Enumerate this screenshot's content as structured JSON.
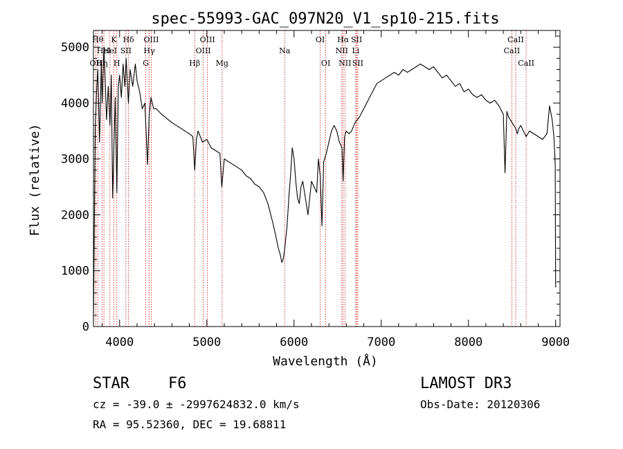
{
  "chart_data": {
    "type": "line",
    "title": "spec-55993-GAC_097N20_V1_sp10-215.fits",
    "xlabel": "Wavelength (Å)",
    "ylabel": "Flux (relative)",
    "xlim": [
      3700,
      9050
    ],
    "ylim": [
      0,
      5300
    ],
    "xticks": [
      4000,
      5000,
      6000,
      7000,
      8000,
      9000
    ],
    "yticks": [
      0,
      1000,
      2000,
      3000,
      4000,
      5000
    ],
    "grid": false,
    "line_color": "#000000",
    "marker_color": "#cc0000",
    "series": [
      {
        "x": [
          3700,
          3720,
          3735,
          3750,
          3770,
          3790,
          3800,
          3820,
          3835,
          3850,
          3870,
          3890,
          3905,
          3920,
          3934,
          3950,
          3968,
          3985,
          4000,
          4020,
          4040,
          4060,
          4075,
          4101,
          4120,
          4150,
          4180,
          4200,
          4230,
          4260,
          4290,
          4320,
          4340,
          4360,
          4390,
          4420,
          4450,
          4480,
          4520,
          4560,
          4600,
          4650,
          4700,
          4750,
          4800,
          4840,
          4861,
          4880,
          4900,
          4950,
          5000,
          5050,
          5100,
          5150,
          5172,
          5200,
          5250,
          5300,
          5350,
          5400,
          5450,
          5500,
          5550,
          5600,
          5650,
          5700,
          5750,
          5780,
          5800,
          5820,
          5840,
          5860,
          5875,
          5890,
          5900,
          5920,
          5940,
          5960,
          5980,
          6000,
          6020,
          6040,
          6060,
          6080,
          6100,
          6120,
          6140,
          6160,
          6180,
          6200,
          6230,
          6260,
          6280,
          6300,
          6320,
          6340,
          6370,
          6400,
          6430,
          6460,
          6490,
          6520,
          6550,
          6563,
          6580,
          6600,
          6630,
          6660,
          6700,
          6750,
          6800,
          6850,
          6900,
          6950,
          7000,
          7050,
          7100,
          7150,
          7200,
          7250,
          7300,
          7350,
          7400,
          7450,
          7500,
          7550,
          7600,
          7650,
          7700,
          7750,
          7800,
          7850,
          7900,
          7950,
          8000,
          8050,
          8100,
          8150,
          8200,
          8250,
          8300,
          8350,
          8400,
          8420,
          8440,
          8460,
          8480,
          8500,
          8520,
          8542,
          8560,
          8580,
          8600,
          8630,
          8662,
          8700,
          8750,
          8800,
          8850,
          8900,
          8930,
          8960,
          8980,
          8995,
          9000
        ],
        "y": [
          50,
          3500,
          4200,
          4600,
          3300,
          4700,
          4000,
          5000,
          4400,
          3700,
          4300,
          3600,
          4500,
          2300,
          3200,
          4100,
          2400,
          4300,
          4500,
          4100,
          4700,
          4300,
          4800,
          4000,
          4600,
          4300,
          4700,
          4400,
          4200,
          3900,
          4000,
          2900,
          3800,
          4100,
          3900,
          3900,
          3850,
          3800,
          3750,
          3700,
          3650,
          3600,
          3550,
          3500,
          3450,
          3400,
          2800,
          3350,
          3500,
          3300,
          3350,
          3200,
          3150,
          3100,
          2500,
          3000,
          2950,
          2900,
          2850,
          2800,
          2700,
          2650,
          2550,
          2500,
          2400,
          2200,
          1900,
          1700,
          1550,
          1400,
          1300,
          1150,
          1200,
          1350,
          1500,
          1800,
          2300,
          2700,
          3200,
          3000,
          2600,
          2300,
          2200,
          2500,
          2600,
          2400,
          2200,
          2000,
          2300,
          2600,
          2500,
          2400,
          3000,
          2700,
          1800,
          2950,
          3100,
          3300,
          3500,
          3600,
          3500,
          3300,
          3200,
          2600,
          3400,
          3500,
          3450,
          3500,
          3650,
          3750,
          3900,
          4050,
          4200,
          4350,
          4400,
          4450,
          4500,
          4550,
          4500,
          4600,
          4550,
          4600,
          4650,
          4700,
          4650,
          4600,
          4650,
          4550,
          4450,
          4500,
          4400,
          4300,
          4350,
          4200,
          4250,
          4150,
          4100,
          4150,
          4050,
          4000,
          4050,
          3950,
          3800,
          2750,
          3850,
          3750,
          3700,
          3650,
          3600,
          3550,
          3450,
          3550,
          3600,
          3500,
          3400,
          3500,
          3450,
          3400,
          3350,
          3450,
          3950,
          3700,
          3400,
          2900,
          700
        ]
      }
    ],
    "lines": [
      {
        "x": 3727,
        "label": "OII",
        "row": 3
      },
      {
        "x": 3750,
        "label": "Hθ",
        "row": 1
      },
      {
        "x": 3798,
        "label": "Hη",
        "row": 3
      },
      {
        "x": 3820,
        "label": "HeI",
        "row": 2
      },
      {
        "x": 3889,
        "label": "HeI",
        "row": 2
      },
      {
        "x": 3934,
        "label": "K",
        "row": 1
      },
      {
        "x": 3968,
        "label": "H",
        "row": 3
      },
      {
        "x": 4072,
        "label": "SII",
        "row": 2
      },
      {
        "x": 4102,
        "label": "Hδ",
        "row": 1
      },
      {
        "x": 4300,
        "label": "G",
        "row": 3
      },
      {
        "x": 4340,
        "label": "Hγ",
        "row": 2
      },
      {
        "x": 4363,
        "label": "OIII",
        "row": 1
      },
      {
        "x": 4861,
        "label": "Hβ",
        "row": 3
      },
      {
        "x": 4959,
        "label": "OIII",
        "row": 2
      },
      {
        "x": 5007,
        "label": "OIII",
        "row": 1
      },
      {
        "x": 5175,
        "label": "Mg",
        "row": 3
      },
      {
        "x": 5893,
        "label": "Na",
        "row": 2
      },
      {
        "x": 6300,
        "label": "OI",
        "row": 1
      },
      {
        "x": 6364,
        "label": "OI",
        "row": 3
      },
      {
        "x": 6548,
        "label": "NII",
        "row": 2
      },
      {
        "x": 6563,
        "label": "Hα",
        "row": 1
      },
      {
        "x": 6584,
        "label": "NII",
        "row": 3
      },
      {
        "x": 6708,
        "label": "Li",
        "row": 2
      },
      {
        "x": 6717,
        "label": "SII",
        "row": 1
      },
      {
        "x": 6731,
        "label": "SII",
        "row": 3
      },
      {
        "x": 8498,
        "label": "CaII",
        "row": 2
      },
      {
        "x": 8542,
        "label": "CaII",
        "row": 1
      },
      {
        "x": 8662,
        "label": "CaII",
        "row": 3
      }
    ]
  },
  "info": {
    "class": "STAR",
    "subclass": "F6",
    "survey": "LAMOST DR3",
    "redshift": "cz = -39.0 ± -2997624832.0 km/s",
    "obs_date": "Obs-Date: 20120306",
    "coords": "RA =  95.52360, DEC =  19.68811"
  }
}
